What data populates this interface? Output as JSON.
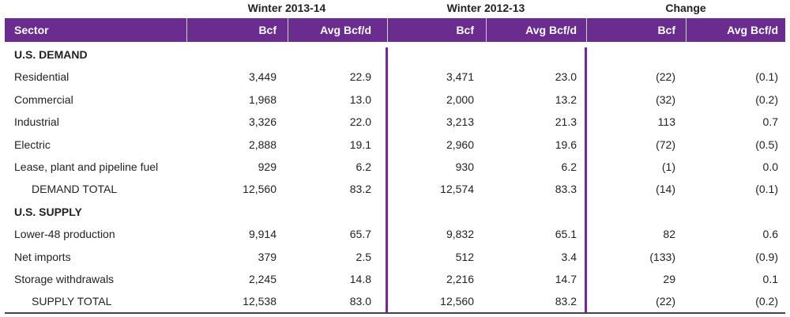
{
  "header": {
    "groups": [
      "Winter 2013-14",
      "Winter 2012-13",
      "Change"
    ]
  },
  "table": {
    "columns": [
      "Sector",
      "Bcf",
      "Avg Bcf/d",
      "Bcf",
      "Avg Bcf/d",
      "Bcf",
      "Avg Bcf/d"
    ],
    "rows": [
      [
        "U.S. DEMAND"
      ],
      [
        "Residential",
        "3,449",
        "22.9",
        "3,471",
        "23.0",
        "(22)",
        "(0.1)"
      ],
      [
        "Commercial",
        "1,968",
        "13.0",
        "2,000",
        "13.2",
        "(32)",
        "(0.2)"
      ],
      [
        "Industrial",
        "3,326",
        "22.0",
        "3,213",
        "21.3",
        "113",
        "0.7"
      ],
      [
        "Electric",
        "2,888",
        "19.1",
        "2,960",
        "19.6",
        "(72)",
        "(0.5)"
      ],
      [
        "Lease, plant and pipeline fuel",
        "929",
        "6.2",
        "930",
        "6.2",
        "(1)",
        "0.0"
      ],
      [
        "DEMAND TOTAL",
        "12,560",
        "83.2",
        "12,574",
        "83.3",
        "(14)",
        "(0.1)"
      ],
      [
        "U.S. SUPPLY"
      ],
      [
        "Lower-48 production",
        "9,914",
        "65.7",
        "9,832",
        "65.1",
        "82",
        "0.6"
      ],
      [
        "Net imports",
        "379",
        "2.5",
        "512",
        "3.4",
        "(133)",
        "(0.9)"
      ],
      [
        "Storage withdrawals",
        "2,245",
        "14.8",
        "2,216",
        "14.7",
        "29",
        "0.1"
      ],
      [
        "SUPPLY TOTAL",
        "12,538",
        "83.0",
        "12,560",
        "83.2",
        "(22)",
        "(0.2)"
      ]
    ]
  }
}
